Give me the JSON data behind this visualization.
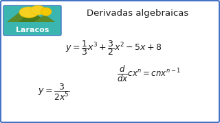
{
  "title": "Derivadas algebraicas",
  "bg_color": "#ffffff",
  "border_color": "#4472c4",
  "logo_bg": "#3ab5b0",
  "logo_text": "Laracos",
  "formula1": "$y = \\dfrac{1}{3}x^3 + \\dfrac{3}{2}x^2 - 5x + 8$",
  "formula2": "$y = \\dfrac{3}{2x^5}$",
  "formula3": "$\\dfrac{d}{dx}cx^n = cnx^{n-1}$",
  "title_fontsize": 9.5,
  "formula1_fontsize": 9.0,
  "formula2_fontsize": 9.0,
  "formula3_fontsize": 8.5,
  "text_color": "#1a1a1a"
}
